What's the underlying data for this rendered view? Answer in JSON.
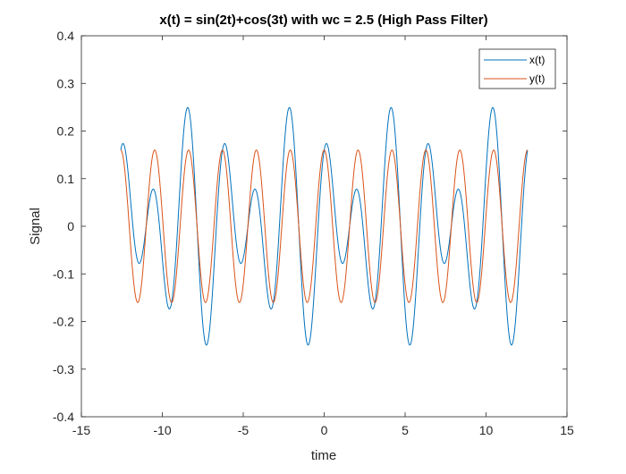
{
  "chart_data": {
    "type": "line",
    "title": "x(t) = sin(2t)+cos(3t) with wc = 2.5 (High Pass Filter)",
    "xlabel": "time",
    "ylabel": "Signal",
    "xlim": [
      -15,
      15
    ],
    "ylim": [
      -0.4,
      0.4
    ],
    "xticks": [
      -15,
      -10,
      -5,
      0,
      5,
      10,
      15
    ],
    "yticks": [
      -0.4,
      -0.3,
      -0.2,
      -0.1,
      0,
      0.1,
      0.2,
      0.3,
      0.4
    ],
    "x_domain": [
      -12.566,
      12.566
    ],
    "grid": false,
    "legend_position": "top-right",
    "series": [
      {
        "name": "x(t)",
        "color": "#0072BD",
        "formula": "0.1*sin(2t) + 0.16*cos(3t)",
        "components": [
          {
            "func": "sin",
            "amplitude": 0.1,
            "angular_frequency": 2
          },
          {
            "func": "cos",
            "amplitude": 0.16,
            "angular_frequency": 3
          }
        ]
      },
      {
        "name": "y(t)",
        "color": "#D95319",
        "formula": "0.16*cos(3t)",
        "components": [
          {
            "func": "cos",
            "amplitude": 0.16,
            "angular_frequency": 3
          }
        ]
      }
    ]
  }
}
